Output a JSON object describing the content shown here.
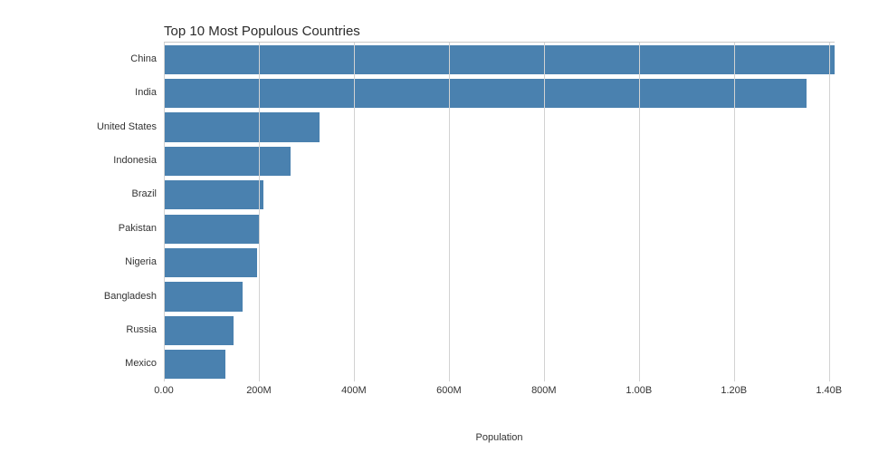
{
  "chart_data": {
    "type": "bar",
    "orientation": "horizontal",
    "title": "Top 10 Most Populous Countries",
    "xlabel": "Population",
    "categories": [
      "China",
      "India",
      "United States",
      "Indonesia",
      "Brazil",
      "Pakistan",
      "Nigeria",
      "Bangladesh",
      "Russia",
      "Mexico"
    ],
    "values_millions": [
      1412,
      1352,
      328,
      267,
      210,
      201,
      196,
      165,
      146,
      129
    ],
    "xmax_millions": 1412,
    "xticks": [
      {
        "label": "0.00",
        "value": 0
      },
      {
        "label": "200M",
        "value": 200
      },
      {
        "label": "400M",
        "value": 400
      },
      {
        "label": "600M",
        "value": 600
      },
      {
        "label": "800M",
        "value": 800
      },
      {
        "label": "1.00B",
        "value": 1000
      },
      {
        "label": "1.20B",
        "value": 1200
      },
      {
        "label": "1.40B",
        "value": 1400
      }
    ],
    "bar_color": "#4a81af",
    "grid_color": "#d2d2d2",
    "grid": true,
    "legend": "none",
    "background": "#ffffff"
  }
}
